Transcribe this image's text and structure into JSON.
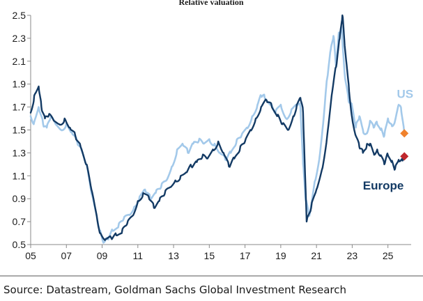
{
  "chart_data": {
    "type": "line",
    "title": "Relative valuation",
    "xlabel": "",
    "ylabel": "",
    "xlim": [
      2005,
      2026.3
    ],
    "ylim": [
      0.5,
      2.5
    ],
    "x_ticks": [
      2005,
      2007,
      2009,
      2011,
      2013,
      2015,
      2017,
      2019,
      2021,
      2023,
      2025
    ],
    "x_tick_labels": [
      "05",
      "07",
      "09",
      "11",
      "13",
      "15",
      "17",
      "19",
      "21",
      "23",
      "25"
    ],
    "y_ticks": [
      0.5,
      0.7,
      0.9,
      1.1,
      1.3,
      1.5,
      1.7,
      1.9,
      2.1,
      2.3,
      2.5
    ],
    "y_tick_labels": [
      "0.5",
      "0.7",
      "0.9",
      "1.1",
      "1.3",
      "1.5",
      "1.7",
      "1.9",
      "2.1",
      "2.3",
      "2.5"
    ],
    "grid": false,
    "series": [
      {
        "name": "US",
        "color": "#a3c9ea",
        "x": [
          2005.0,
          2005.2,
          2005.45,
          2005.7,
          2005.9,
          2006.1,
          2006.4,
          2006.7,
          2007.0,
          2007.3,
          2007.6,
          2007.85,
          2008.1,
          2008.4,
          2008.7,
          2008.9,
          2009.1,
          2009.3,
          2009.6,
          2009.9,
          2010.2,
          2010.5,
          2010.8,
          2011.1,
          2011.4,
          2011.7,
          2012.0,
          2012.3,
          2012.6,
          2012.9,
          2013.2,
          2013.5,
          2013.8,
          2014.1,
          2014.4,
          2014.7,
          2015.0,
          2015.3,
          2015.6,
          2015.9,
          2016.2,
          2016.5,
          2016.8,
          2017.1,
          2017.4,
          2017.7,
          2017.9,
          2018.1,
          2018.4,
          2018.7,
          2019.0,
          2019.3,
          2019.6,
          2019.9,
          2020.1,
          2020.25,
          2020.4,
          2020.6,
          2020.9,
          2021.2,
          2021.4,
          2021.6,
          2021.8,
          2021.95,
          2022.1,
          2022.25,
          2022.4,
          2022.6,
          2022.8,
          2023.0,
          2023.2,
          2023.4,
          2023.6,
          2023.8,
          2024.0,
          2024.2,
          2024.4,
          2024.6,
          2024.8,
          2025.0,
          2025.2,
          2025.4,
          2025.6,
          2025.75,
          2025.9
        ],
        "values": [
          1.62,
          1.57,
          1.7,
          1.55,
          1.52,
          1.6,
          1.55,
          1.5,
          1.56,
          1.48,
          1.4,
          1.32,
          1.2,
          0.95,
          0.75,
          0.62,
          0.52,
          0.55,
          0.62,
          0.65,
          0.72,
          0.76,
          0.83,
          0.92,
          0.98,
          0.9,
          0.95,
          1.0,
          1.06,
          1.18,
          1.33,
          1.38,
          1.3,
          1.38,
          1.4,
          1.38,
          1.42,
          1.38,
          1.3,
          1.24,
          1.3,
          1.38,
          1.45,
          1.52,
          1.62,
          1.72,
          1.8,
          1.78,
          1.72,
          1.65,
          1.72,
          1.6,
          1.68,
          1.72,
          1.7,
          1.2,
          0.88,
          0.75,
          1.05,
          1.3,
          1.6,
          1.95,
          2.2,
          2.32,
          2.05,
          2.35,
          2.4,
          1.95,
          1.75,
          1.7,
          1.52,
          1.62,
          1.5,
          1.47,
          1.58,
          1.52,
          1.55,
          1.5,
          1.45,
          1.6,
          1.55,
          1.58,
          1.72,
          1.66,
          1.5
        ]
      },
      {
        "name": "Europe",
        "color": "#133a64",
        "x": [
          2005.0,
          2005.2,
          2005.45,
          2005.6,
          2005.8,
          2006.0,
          2006.3,
          2006.6,
          2006.9,
          2007.2,
          2007.5,
          2007.8,
          2008.1,
          2008.4,
          2008.7,
          2008.9,
          2009.2,
          2009.5,
          2009.8,
          2010.1,
          2010.4,
          2010.7,
          2011.0,
          2011.3,
          2011.6,
          2011.9,
          2012.2,
          2012.5,
          2012.8,
          2013.1,
          2013.4,
          2013.7,
          2014.0,
          2014.3,
          2014.6,
          2014.9,
          2015.2,
          2015.5,
          2015.8,
          2016.1,
          2016.4,
          2016.7,
          2017.0,
          2017.3,
          2017.6,
          2017.9,
          2018.2,
          2018.5,
          2018.8,
          2019.1,
          2019.4,
          2019.7,
          2019.9,
          2020.1,
          2020.25,
          2020.45,
          2020.7,
          2021.0,
          2021.3,
          2021.6,
          2021.85,
          2022.1,
          2022.3,
          2022.45,
          2022.6,
          2022.8,
          2023.0,
          2023.2,
          2023.4,
          2023.6,
          2023.8,
          2024.0,
          2024.2,
          2024.4,
          2024.6,
          2024.8,
          2025.0,
          2025.2,
          2025.4,
          2025.6,
          2025.8,
          2025.9
        ],
        "values": [
          1.65,
          1.8,
          1.88,
          1.7,
          1.6,
          1.62,
          1.58,
          1.55,
          1.6,
          1.52,
          1.45,
          1.35,
          1.2,
          0.98,
          0.75,
          0.6,
          0.55,
          0.56,
          0.58,
          0.6,
          0.68,
          0.75,
          0.88,
          0.95,
          0.92,
          0.82,
          0.88,
          0.94,
          1.0,
          1.06,
          1.1,
          1.13,
          1.18,
          1.22,
          1.26,
          1.25,
          1.33,
          1.4,
          1.3,
          1.18,
          1.25,
          1.32,
          1.4,
          1.5,
          1.6,
          1.7,
          1.76,
          1.7,
          1.62,
          1.55,
          1.5,
          1.62,
          1.72,
          1.78,
          1.65,
          0.7,
          0.82,
          0.98,
          1.15,
          1.45,
          1.8,
          2.05,
          2.3,
          2.5,
          2.2,
          1.9,
          1.6,
          1.45,
          1.35,
          1.3,
          1.35,
          1.38,
          1.3,
          1.33,
          1.28,
          1.2,
          1.28,
          1.22,
          1.16,
          1.24,
          1.25,
          1.28
        ]
      }
    ],
    "series_labels": [
      {
        "text": "US",
        "series": "US",
        "anchor_x": 2025.5,
        "anchor_y": 1.78
      },
      {
        "text": "Europe",
        "series": "Europe",
        "anchor_x": 2023.6,
        "anchor_y": 0.98
      }
    ],
    "markers": [
      {
        "series": "US",
        "x": 2025.92,
        "y": 1.47,
        "color": "#f0822d",
        "shape": "diamond"
      },
      {
        "series": "Europe",
        "x": 2025.92,
        "y": 1.27,
        "color": "#c0282d",
        "shape": "diamond"
      }
    ],
    "source": "Source: Datastream, Goldman Sachs Global Investment Research"
  }
}
